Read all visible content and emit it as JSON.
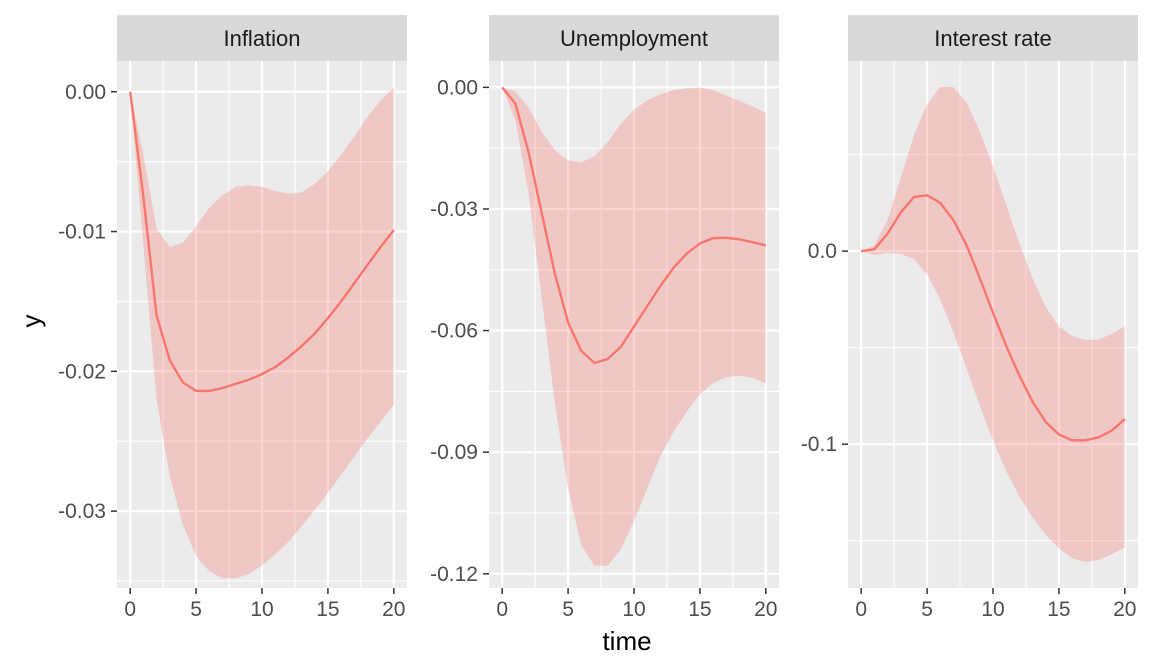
{
  "chart_data": {
    "type": "line",
    "layout": "faceted-3-panels",
    "xlabel": "time",
    "ylabel": "y",
    "series_color": "#f8766d",
    "ribbon_color": "#f8766d",
    "panel_background": "#ebebeb",
    "strip_background": "#d9d9d9",
    "grid": true,
    "facets": [
      {
        "title": "Inflation",
        "x": [
          0,
          1,
          2,
          3,
          4,
          5,
          6,
          7,
          8,
          9,
          10,
          11,
          12,
          13,
          14,
          15,
          16,
          17,
          18,
          19,
          20
        ],
        "y": [
          0,
          -0.0075,
          -0.016,
          -0.0192,
          -0.0208,
          -0.0214,
          -0.0214,
          -0.0212,
          -0.0209,
          -0.0206,
          -0.0202,
          -0.0197,
          -0.019,
          -0.0182,
          -0.0173,
          -0.0162,
          -0.015,
          -0.0137,
          -0.0124,
          -0.0111,
          -0.0099
        ],
        "lower": [
          0,
          -0.011,
          -0.022,
          -0.0275,
          -0.031,
          -0.0332,
          -0.0343,
          -0.0348,
          -0.0348,
          -0.0345,
          -0.0339,
          -0.0331,
          -0.0322,
          -0.0311,
          -0.0299,
          -0.0287,
          -0.0274,
          -0.0261,
          -0.0248,
          -0.0236,
          -0.0224
        ],
        "upper": [
          0,
          -0.0045,
          -0.0098,
          -0.0111,
          -0.0108,
          -0.0096,
          -0.0083,
          -0.0074,
          -0.0068,
          -0.0067,
          -0.0068,
          -0.0071,
          -0.0073,
          -0.0072,
          -0.0066,
          -0.0057,
          -0.0045,
          -0.0032,
          -0.0018,
          -0.0006,
          0.0003
        ],
        "ylim": [
          -0.0355,
          0.0022
        ],
        "yticks": [
          0.0,
          -0.01,
          -0.02,
          -0.03
        ],
        "ytick_labels": [
          "0.00",
          "-0.01",
          "-0.02",
          "-0.03"
        ],
        "xticks": [
          0,
          5,
          10,
          15,
          20
        ],
        "xtick_labels": [
          "0",
          "5",
          "10",
          "15",
          "20"
        ]
      },
      {
        "title": "Unemployment",
        "x": [
          0,
          1,
          2,
          3,
          4,
          5,
          6,
          7,
          8,
          9,
          10,
          11,
          12,
          13,
          14,
          15,
          16,
          17,
          18,
          19,
          20
        ],
        "y": [
          0,
          -0.004,
          -0.016,
          -0.031,
          -0.046,
          -0.058,
          -0.065,
          -0.068,
          -0.067,
          -0.064,
          -0.059,
          -0.054,
          -0.049,
          -0.0445,
          -0.041,
          -0.0385,
          -0.0372,
          -0.0371,
          -0.0375,
          -0.0382,
          -0.039
        ],
        "lower": [
          0,
          -0.008,
          -0.026,
          -0.052,
          -0.078,
          -0.099,
          -0.113,
          -0.118,
          -0.118,
          -0.114,
          -0.107,
          -0.099,
          -0.091,
          -0.085,
          -0.08,
          -0.0757,
          -0.0729,
          -0.0715,
          -0.0711,
          -0.0717,
          -0.073
        ],
        "upper": [
          0,
          -0.001,
          -0.005,
          -0.011,
          -0.0155,
          -0.018,
          -0.0185,
          -0.017,
          -0.0135,
          -0.009,
          -0.0055,
          -0.0032,
          -0.0017,
          -0.0007,
          -0.0002,
          0,
          -0.0007,
          -0.002,
          -0.0033,
          -0.0048,
          -0.0063
        ],
        "ylim": [
          -0.1235,
          0.0065
        ],
        "yticks": [
          0.0,
          -0.03,
          -0.06,
          -0.09,
          -0.12
        ],
        "ytick_labels": [
          "0.00",
          "-0.03",
          "-0.06",
          "-0.09",
          "-0.12"
        ],
        "xticks": [
          0,
          5,
          10,
          15,
          20
        ],
        "xtick_labels": [
          "0",
          "5",
          "10",
          "15",
          "20"
        ]
      },
      {
        "title": "Interest rate",
        "x": [
          0,
          1,
          2,
          3,
          4,
          5,
          6,
          7,
          8,
          9,
          10,
          11,
          12,
          13,
          14,
          15,
          16,
          17,
          18,
          19,
          20
        ],
        "y": [
          0,
          0.001,
          0.009,
          0.02,
          0.028,
          0.029,
          0.025,
          0.016,
          0.003,
          -0.014,
          -0.032,
          -0.049,
          -0.0645,
          -0.078,
          -0.0885,
          -0.095,
          -0.098,
          -0.098,
          -0.0965,
          -0.093,
          -0.087
        ],
        "lower": [
          0,
          -0.002,
          -0.001,
          -0.0015,
          -0.004,
          -0.012,
          -0.025,
          -0.042,
          -0.061,
          -0.08,
          -0.098,
          -0.114,
          -0.127,
          -0.138,
          -0.147,
          -0.154,
          -0.159,
          -0.161,
          -0.16,
          -0.157,
          -0.1535
        ],
        "upper": [
          0,
          0.003,
          0.016,
          0.038,
          0.06,
          0.076,
          0.085,
          0.085,
          0.077,
          0.062,
          0.044,
          0.024,
          0.004,
          -0.014,
          -0.029,
          -0.039,
          -0.044,
          -0.046,
          -0.0458,
          -0.043,
          -0.039
        ],
        "ylim": [
          -0.1745,
          0.0985
        ],
        "yticks": [
          0.0,
          -0.1
        ],
        "ytick_labels": [
          "0.0",
          "-0.1"
        ],
        "xticks": [
          0,
          5,
          10,
          15,
          20
        ],
        "xtick_labels": [
          "0",
          "5",
          "10",
          "15",
          "20"
        ]
      }
    ]
  }
}
